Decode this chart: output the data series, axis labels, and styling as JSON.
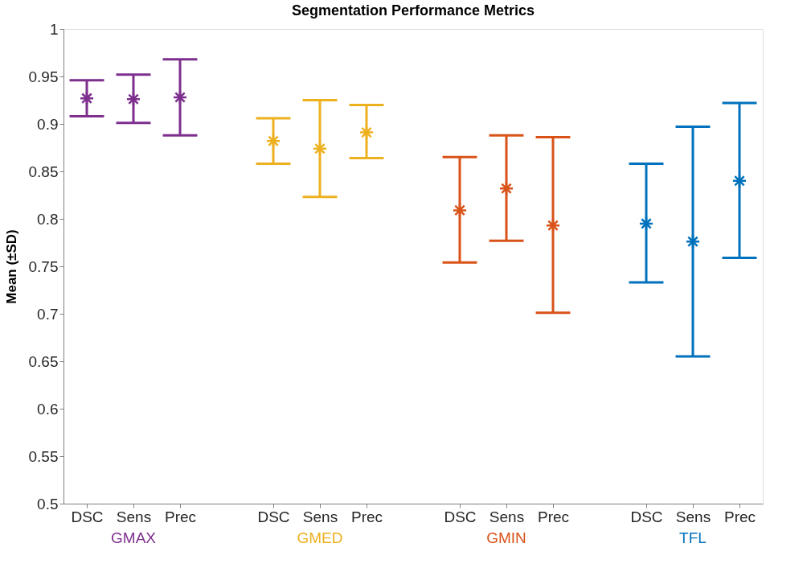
{
  "chart_data": {
    "type": "scatter",
    "title": "Segmentation Performance Metrics",
    "ylabel": "Mean (±SD)",
    "categories": [
      "DSC",
      "Sens",
      "Prec",
      null,
      "DSC",
      "Sens",
      "Prec",
      null,
      "DSC",
      "Sens",
      "Prec",
      null,
      "DSC",
      "Sens",
      "Prec"
    ],
    "series": [
      {
        "name": "GMAX",
        "color": "#7e2f8e",
        "values": [
          0.927,
          0.926,
          0.928,
          null,
          null,
          null,
          null,
          null,
          null,
          null,
          null,
          null,
          null,
          null,
          null
        ],
        "errors": [
          [
            0.908,
            0.946
          ],
          [
            0.901,
            0.952
          ],
          [
            0.888,
            0.968
          ],
          null,
          null,
          null,
          null,
          null,
          null,
          null,
          null,
          null,
          null,
          null,
          null
        ]
      },
      {
        "name": "GMED",
        "color": "#edb120",
        "values": [
          null,
          null,
          null,
          null,
          0.882,
          0.874,
          0.891,
          null,
          null,
          null,
          null,
          null,
          null,
          null,
          null
        ],
        "errors": [
          null,
          null,
          null,
          null,
          [
            0.858,
            0.906
          ],
          [
            0.823,
            0.925
          ],
          [
            0.864,
            0.92
          ],
          null,
          null,
          null,
          null,
          null,
          null,
          null,
          null
        ]
      },
      {
        "name": "GMIN",
        "color": "#d95319",
        "values": [
          null,
          null,
          null,
          null,
          null,
          null,
          null,
          null,
          0.809,
          0.832,
          0.793,
          null,
          null,
          null,
          null
        ],
        "errors": [
          null,
          null,
          null,
          null,
          null,
          null,
          null,
          null,
          [
            0.754,
            0.865
          ],
          [
            0.777,
            0.888
          ],
          [
            0.701,
            0.886
          ],
          null,
          null,
          null,
          null
        ]
      },
      {
        "name": "TFL",
        "color": "#0072bd",
        "values": [
          null,
          null,
          null,
          null,
          null,
          null,
          null,
          null,
          null,
          null,
          null,
          null,
          0.795,
          0.776,
          0.84
        ],
        "errors": [
          null,
          null,
          null,
          null,
          null,
          null,
          null,
          null,
          null,
          null,
          null,
          null,
          [
            0.733,
            0.858
          ],
          [
            0.655,
            0.897
          ],
          [
            0.759,
            0.922
          ]
        ]
      }
    ],
    "ylim": [
      0.5,
      1
    ],
    "yticks": [
      0.5,
      0.55,
      0.6,
      0.65,
      0.7,
      0.75,
      0.8,
      0.85,
      0.9,
      0.95,
      1
    ],
    "marker": "cross",
    "grid": false,
    "legend": false
  }
}
